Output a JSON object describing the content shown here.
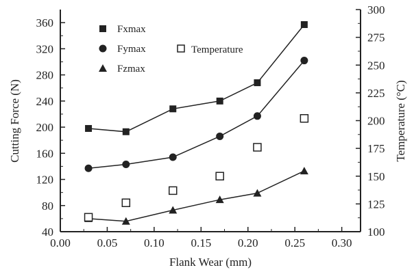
{
  "chart_data": {
    "type": "line",
    "title": "",
    "xlabel": "Flank Wear (mm)",
    "ylabel": "Cutting Force (N)",
    "y2label": "Temperature (°C)",
    "xlim": [
      0,
      0.32
    ],
    "ylim": [
      40,
      380
    ],
    "y2lim": [
      100,
      300
    ],
    "xticks": [
      "0.00",
      "0.05",
      "0.10",
      "0.15",
      "0.20",
      "0.25",
      "0.30"
    ],
    "xtick_values": [
      0,
      0.05,
      0.1,
      0.15,
      0.2,
      0.25,
      0.3
    ],
    "yticks": [
      "40",
      "80",
      "120",
      "160",
      "200",
      "240",
      "280",
      "320",
      "360"
    ],
    "ytick_values": [
      40,
      80,
      120,
      160,
      200,
      240,
      280,
      320,
      360
    ],
    "y2ticks": [
      "100",
      "125",
      "150",
      "175",
      "200",
      "225",
      "250",
      "275",
      "300"
    ],
    "y2tick_values": [
      100,
      125,
      150,
      175,
      200,
      225,
      250,
      275,
      300
    ],
    "grid": false,
    "legend_position": "top-left",
    "series": [
      {
        "name": "Fxmax",
        "marker": "square-filled",
        "axis": "left",
        "connected": true,
        "x": [
          0.03,
          0.07,
          0.12,
          0.17,
          0.21,
          0.26
        ],
        "y": [
          198,
          193,
          228,
          240,
          268,
          357
        ]
      },
      {
        "name": "Fymax",
        "marker": "circle-filled",
        "axis": "left",
        "connected": true,
        "x": [
          0.03,
          0.07,
          0.12,
          0.17,
          0.21,
          0.26
        ],
        "y": [
          137,
          143,
          154,
          186,
          217,
          302
        ]
      },
      {
        "name": "Fzmax",
        "marker": "triangle-filled",
        "axis": "left",
        "connected": true,
        "x": [
          0.03,
          0.07,
          0.12,
          0.17,
          0.21,
          0.26
        ],
        "y": [
          60,
          56,
          73,
          89,
          99,
          133
        ]
      },
      {
        "name": "Temperature",
        "marker": "square-open",
        "axis": "right",
        "connected": false,
        "x": [
          0.03,
          0.07,
          0.12,
          0.17,
          0.21,
          0.26
        ],
        "y": [
          113,
          126,
          137,
          150,
          176,
          202
        ]
      }
    ],
    "colors": {
      "ink": "#222222",
      "background": "#ffffff"
    }
  }
}
